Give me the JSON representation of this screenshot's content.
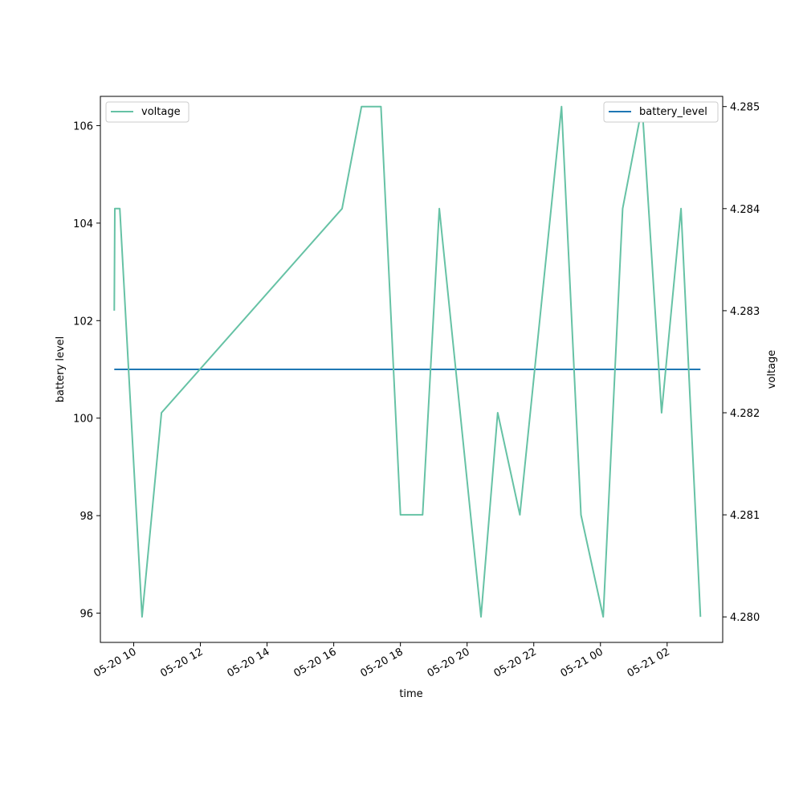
{
  "chart_data": {
    "type": "line",
    "xlabel": "time",
    "ylabel_left": "battery level",
    "ylabel_right": "voltage",
    "x_axis": {
      "kind": "datetime",
      "range": [
        "2020-05-20 09:00",
        "2020-05-21 03:40"
      ],
      "ticks": [
        {
          "t": "2020-05-20 10:00",
          "label": "05-20 10"
        },
        {
          "t": "2020-05-20 12:00",
          "label": "05-20 12"
        },
        {
          "t": "2020-05-20 14:00",
          "label": "05-20 14"
        },
        {
          "t": "2020-05-20 16:00",
          "label": "05-20 16"
        },
        {
          "t": "2020-05-20 18:00",
          "label": "05-20 18"
        },
        {
          "t": "2020-05-20 20:00",
          "label": "05-20 20"
        },
        {
          "t": "2020-05-20 22:00",
          "label": "05-20 22"
        },
        {
          "t": "2020-05-21 00:00",
          "label": "05-21 00"
        },
        {
          "t": "2020-05-21 02:00",
          "label": "05-21 02"
        }
      ]
    },
    "y_left": {
      "range": [
        95.4,
        106.6
      ],
      "ticks": [
        96,
        98,
        100,
        102,
        104,
        106
      ]
    },
    "y_right": {
      "range": [
        4.27975,
        4.2851
      ],
      "ticks": [
        "4.280",
        "4.281",
        "4.282",
        "4.283",
        "4.284",
        "4.285"
      ]
    },
    "grid": false,
    "series": [
      {
        "name": "battery_level",
        "axis": "left",
        "color": "#1f77b4",
        "legend": "top-right",
        "points": [
          {
            "t": "2020-05-20 09:25",
            "y": 101
          },
          {
            "t": "2020-05-21 03:00",
            "y": 101
          }
        ]
      },
      {
        "name": "voltage",
        "axis": "right",
        "color": "#66c2a5",
        "legend": "top-left",
        "points": [
          {
            "t": "2020-05-20 09:25",
            "y": 4.283
          },
          {
            "t": "2020-05-20 09:26",
            "y": 4.284
          },
          {
            "t": "2020-05-20 09:35",
            "y": 4.284
          },
          {
            "t": "2020-05-20 10:15",
            "y": 4.28
          },
          {
            "t": "2020-05-20 10:50",
            "y": 4.282
          },
          {
            "t": "2020-05-20 16:15",
            "y": 4.284
          },
          {
            "t": "2020-05-20 16:50",
            "y": 4.285
          },
          {
            "t": "2020-05-20 17:25",
            "y": 4.285
          },
          {
            "t": "2020-05-20 18:00",
            "y": 4.281
          },
          {
            "t": "2020-05-20 18:40",
            "y": 4.281
          },
          {
            "t": "2020-05-20 19:10",
            "y": 4.284
          },
          {
            "t": "2020-05-20 20:25",
            "y": 4.28
          },
          {
            "t": "2020-05-20 20:55",
            "y": 4.282
          },
          {
            "t": "2020-05-20 21:35",
            "y": 4.281
          },
          {
            "t": "2020-05-20 22:50",
            "y": 4.285
          },
          {
            "t": "2020-05-20 23:25",
            "y": 4.281
          },
          {
            "t": "2020-05-21 00:05",
            "y": 4.28
          },
          {
            "t": "2020-05-21 00:40",
            "y": 4.284
          },
          {
            "t": "2020-05-21 01:15",
            "y": 4.285
          },
          {
            "t": "2020-05-21 01:50",
            "y": 4.282
          },
          {
            "t": "2020-05-21 02:25",
            "y": 4.284
          },
          {
            "t": "2020-05-21 03:00",
            "y": 4.28
          }
        ]
      }
    ]
  }
}
